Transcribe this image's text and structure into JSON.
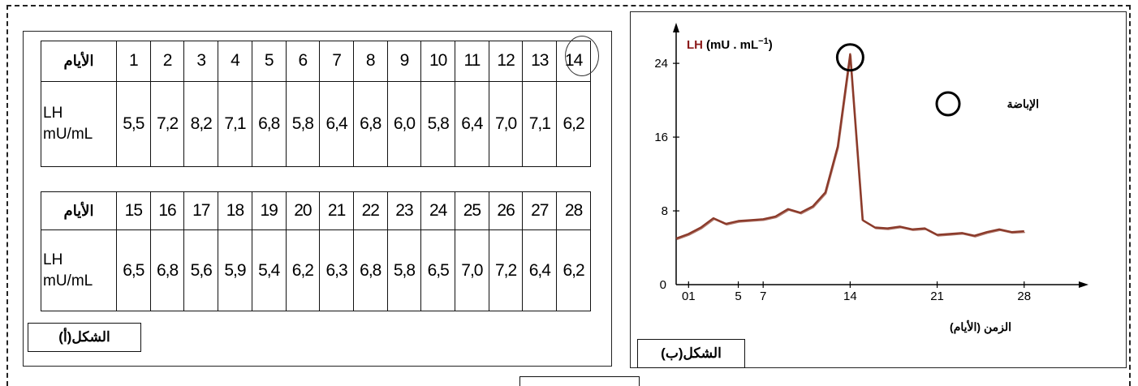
{
  "table_a": {
    "row_label_days": "الأيام",
    "row_label_lh": [
      "LH",
      "mU/mL"
    ],
    "part1": {
      "days": [
        "1",
        "2",
        "3",
        "4",
        "5",
        "6",
        "7",
        "8",
        "9",
        "10",
        "11",
        "12",
        "13",
        "14"
      ],
      "values": [
        "5,5",
        "7,2",
        "8,2",
        "7,1",
        "6,8",
        "5,8",
        "6,4",
        "6,8",
        "6,0",
        "5,8",
        "6,4",
        "7,0",
        "7,1",
        "6,2"
      ]
    },
    "part2": {
      "days": [
        "15",
        "16",
        "17",
        "18",
        "19",
        "20",
        "21",
        "22",
        "23",
        "24",
        "25",
        "26",
        "27",
        "28"
      ],
      "values": [
        "6,5",
        "6,8",
        "5,6",
        "5,9",
        "5,4",
        "6,2",
        "6,3",
        "6,8",
        "5,8",
        "6,5",
        "7,0",
        "7,2",
        "6,4",
        "6,2"
      ]
    }
  },
  "captions": {
    "a": "الشكل(أ)",
    "b": "الشكل(ب)"
  },
  "chart_data": {
    "type": "line",
    "ylabel_bold": "LH",
    "ylabel_units": "(mU . mL",
    "ylabel_exp": "−1",
    "ylabel_close": ")",
    "xlabel": "الزمن (الأيام)",
    "legend_label": "الإباضة",
    "origin_label": "0",
    "x_ticks": [
      "01",
      "5",
      "7",
      "14",
      "21",
      "28"
    ],
    "x_tick_values": [
      1,
      5,
      7,
      14,
      21,
      28
    ],
    "y_ticks": [
      "8",
      "16",
      "24"
    ],
    "y_tick_values": [
      8,
      16,
      24
    ],
    "xlim": [
      0,
      32
    ],
    "ylim": [
      0,
      27
    ],
    "line_color": "#8b3a2a",
    "highlight_x": 14,
    "series": [
      {
        "x": [
          0,
          1,
          2,
          3,
          4,
          5,
          6,
          7,
          8,
          9,
          10,
          11,
          12,
          13,
          14,
          15,
          16,
          17,
          18,
          19,
          20,
          21,
          22,
          23,
          24,
          25,
          26,
          27,
          28
        ],
        "values": [
          5.0,
          5.5,
          6.2,
          7.2,
          6.6,
          6.9,
          7.0,
          7.1,
          7.4,
          8.2,
          7.8,
          8.5,
          10.0,
          15.0,
          25.0,
          7.0,
          6.2,
          6.1,
          6.3,
          6.0,
          6.1,
          5.4,
          5.5,
          5.6,
          5.3,
          5.7,
          6.0,
          5.7,
          5.8
        ]
      }
    ]
  }
}
